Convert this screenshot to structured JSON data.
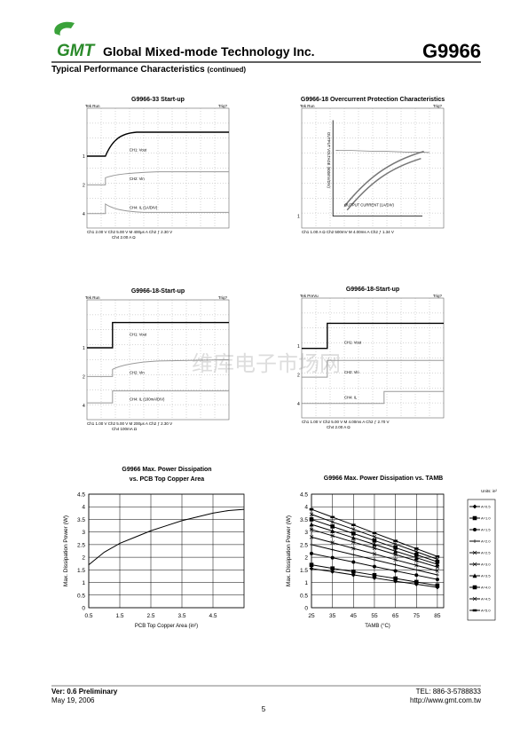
{
  "header": {
    "logo": "GMT",
    "company": "Global Mixed-mode Technology Inc.",
    "part": "G9966",
    "section": "Typical Performance Characteristics",
    "section_note": "(continued)"
  },
  "scopes": [
    {
      "title": "G9966-33 Start-up",
      "status": "Tek Run",
      "trigger": "Trig?",
      "trace_labels": [
        "CH1: Vout",
        "CH2: Vin",
        "CH4: IL (1A/DIV)"
      ],
      "channel_markers": [
        "1",
        "2",
        "4"
      ],
      "readout": [
        "Ch1  2.00 V  Ch2  5.00 V  M 400μs  A  Ch2  ƒ  2.30 V",
        "Ch4  2.00 A Ω"
      ]
    },
    {
      "title": "G9966-18 Overcurrent Protection Characteristics",
      "status": "Tek Run",
      "trigger": "Trig?",
      "trace_labels": [
        "OUTPUT VOLTAGE (500mV/DIV)",
        "OUTPUT CURRENT (1A/DIV)"
      ],
      "channel_markers": [
        "1"
      ],
      "readout": [
        "Ch1  1.00 A Ω  Ch2  500mV  M 4.00ms  A  Ch2  ƒ  1.34 V"
      ]
    },
    {
      "title": "G9966-18-Start-up",
      "status": "Tek Run",
      "trigger": "Trig?",
      "trace_labels": [
        "CH1: Vout",
        "CH2: Vin",
        "CH4: IL (100mA/DIV)"
      ],
      "channel_markers": [
        "1",
        "2",
        "4"
      ],
      "readout": [
        "Ch1  1.00 V  Ch2  5.00 V  M 200μs  A  Ch2  ƒ  2.30 V",
        "Ch4  100mA Ω"
      ]
    },
    {
      "title": "G9966-18-Start-up",
      "status": "Tek PreVu",
      "trigger": "Trig?",
      "trace_labels": [
        "CH1: Vout",
        "CH2: Vin",
        "CH4: IL"
      ],
      "channel_markers": [
        "1",
        "2",
        "4"
      ],
      "readout": [
        "Ch1  1.00 V  Ch2  5.00 V  M 4.00ms  A  Ch2  ƒ  2.70 V",
        "Ch4  2.00 A Ω"
      ]
    }
  ],
  "watermark": "维库电子市场网",
  "chart_data": [
    {
      "type": "line",
      "title": "G9966 Max. Power Dissipation",
      "subtitle": "vs. PCB Top Copper Area",
      "xlabel": "PCB Top Copper Area (in²)",
      "ylabel": "Max. Dissipation Power (W)",
      "x": [
        0.5,
        1,
        1.5,
        2,
        2.5,
        3,
        3.5,
        4,
        4.5,
        5,
        5.5
      ],
      "values": [
        1.7,
        2.2,
        2.55,
        2.8,
        3.05,
        3.25,
        3.45,
        3.6,
        3.75,
        3.85,
        3.9
      ],
      "color": "#000000",
      "xlim": [
        0.5,
        5.5
      ],
      "ylim": [
        0,
        4.5
      ],
      "xticks": [
        0.5,
        1.5,
        2.5,
        3.5,
        4.5
      ],
      "yticks": [
        0,
        0.5,
        1,
        1.5,
        2,
        2.5,
        3,
        3.5,
        4,
        4.5
      ],
      "grid": true
    },
    {
      "type": "line",
      "title": "G9966  Max. Power Dissipation  vs. TAMB",
      "xlabel": "TAMB (°C)",
      "ylabel": "Max. Dissipation Power (W)",
      "legend_title": "Units: in²",
      "x": [
        25,
        35,
        45,
        55,
        65,
        75,
        85
      ],
      "series": [
        {
          "name": "A=0.5",
          "color": "#000000",
          "values": [
            1.55,
            1.43,
            1.3,
            1.18,
            1.05,
            0.93,
            0.81
          ]
        },
        {
          "name": "A=1.0",
          "color": "#000000",
          "values": [
            1.7,
            1.56,
            1.43,
            1.29,
            1.16,
            1.02,
            0.88
          ]
        },
        {
          "name": "A=1.5",
          "color": "#000000",
          "values": [
            2.15,
            1.98,
            1.81,
            1.63,
            1.46,
            1.29,
            1.12
          ]
        },
        {
          "name": "A=2.0",
          "color": "#000000",
          "values": [
            2.5,
            2.3,
            2.1,
            1.9,
            1.7,
            1.5,
            1.3
          ]
        },
        {
          "name": "A=2.5",
          "color": "#000000",
          "values": [
            2.8,
            2.58,
            2.35,
            2.13,
            1.9,
            1.68,
            1.46
          ]
        },
        {
          "name": "A=3.0",
          "color": "#000000",
          "values": [
            3.1,
            2.85,
            2.6,
            2.36,
            2.11,
            1.86,
            1.61
          ]
        },
        {
          "name": "A=3.5",
          "color": "#000000",
          "values": [
            3.3,
            3.04,
            2.77,
            2.51,
            2.24,
            1.98,
            1.72
          ]
        },
        {
          "name": "A=4.0",
          "color": "#000000",
          "values": [
            3.5,
            3.22,
            2.94,
            2.66,
            2.38,
            2.1,
            1.82
          ]
        },
        {
          "name": "A=4.5",
          "color": "#000000",
          "values": [
            3.7,
            3.4,
            3.11,
            2.81,
            2.52,
            2.22,
            1.92
          ]
        },
        {
          "name": "A=5.0",
          "color": "#000000",
          "values": [
            3.9,
            3.59,
            3.28,
            2.96,
            2.65,
            2.34,
            2.03
          ]
        }
      ],
      "xlim": [
        25,
        88
      ],
      "ylim": [
        0,
        4.5
      ],
      "xticks": [
        25,
        35,
        45,
        55,
        65,
        75,
        85
      ],
      "yticks": [
        0,
        0.5,
        1,
        1.5,
        2,
        2.5,
        3,
        3.5,
        4,
        4.5
      ],
      "grid": true,
      "legend": "right"
    }
  ],
  "footer": {
    "version": "Ver: 0.6 Preliminary",
    "date": "May 19, 2006",
    "tel": "TEL: 886-3-5788833",
    "url": "http://www.gmt.com.tw",
    "page": "5"
  }
}
